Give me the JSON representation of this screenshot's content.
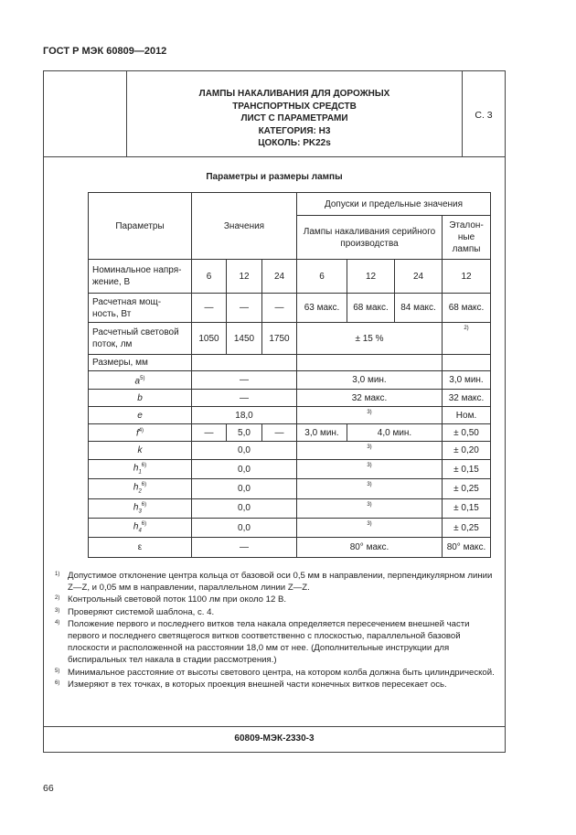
{
  "header": "ГОСТ Р МЭК 60809—2012",
  "title_lines": [
    "ЛАМПЫ НАКАЛИВАНИЯ ДЛЯ ДОРОЖНЫХ",
    "ТРАНСПОРТНЫХ СРЕДСТВ",
    "ЛИСТ С ПАРАМЕТРАМИ",
    "КАТЕГОРИЯ: H3",
    "ЦОКОЛЬ: PK22s"
  ],
  "sheet": "С. 3",
  "subtitle": "Параметры и размеры лампы",
  "table": {
    "h_params": "Параметры",
    "h_values": "Значения",
    "h_tol": "Допуски и предельные значения",
    "h_serial": "Лампы накаливания серийного производства",
    "h_ref": "Эталон- ные лампы",
    "r1": [
      "Номинальное напря- жение, В",
      "6",
      "12",
      "24",
      "6",
      "12",
      "24",
      "12"
    ],
    "r2": [
      "Расчетная мощ- ность, Вт",
      "—",
      "—",
      "—",
      "63 макс.",
      "68 макс.",
      "84 макс.",
      "68 макс."
    ],
    "r3": [
      "Расчетный световой поток, лм",
      "1050",
      "1450",
      "1750",
      "± 15 %",
      "2)"
    ],
    "r4": "Размеры, мм",
    "a": [
      "a",
      "5)",
      "—",
      "3,0 мин.",
      "3,0 мин."
    ],
    "b": [
      "b",
      "—",
      "32 макс.",
      "32 макс."
    ],
    "e": [
      "e",
      "18,0",
      "3)",
      "Ном."
    ],
    "f": [
      "f",
      "4)",
      "—",
      "5,0",
      "—",
      "3,0 мин.",
      "4,0 мин.",
      "± 0,50"
    ],
    "k": [
      "k",
      "0,0",
      "3)",
      "± 0,20"
    ],
    "h1": [
      "h",
      "1",
      "6)",
      "0,0",
      "3)",
      "± 0,15"
    ],
    "h2": [
      "h",
      "2",
      "6)",
      "0,0",
      "3)",
      "± 0,25"
    ],
    "h3": [
      "h",
      "3",
      "6)",
      "0,0",
      "3)",
      "± 0,15"
    ],
    "h4": [
      "h",
      "4",
      "6)",
      "0,0",
      "3)",
      "± 0,25"
    ],
    "eps": [
      "ε",
      "—",
      "80° макс.",
      "80° макс."
    ]
  },
  "notes": [
    {
      "n": "1)",
      "t": "Допустимое отклонение центра кольца от базовой оси 0,5 мм в направлении, перпендикулярном линии Z—Z, и 0,05 мм в направлении, параллельном линии Z—Z."
    },
    {
      "n": "2)",
      "t": "Контрольный световой поток 1100 лм при около 12 В."
    },
    {
      "n": "3)",
      "t": "Проверяют системой шаблона, с. 4."
    },
    {
      "n": "4)",
      "t": "Положение первого и последнего витков тела накала определяется пересечением внешней части первого и последнего светящегося витков соответственно с плоскостью, параллельной базовой плоскости и расположенной на расстоянии 18,0 мм от нее. (Дополнительные инструкции для биспиральных тел накала в стадии рассмотрения.)"
    },
    {
      "n": "5)",
      "t": "Минимальное расстояние от высоты светового центра, на котором колба должна быть цилиндрической."
    },
    {
      "n": "6)",
      "t": "Измеряют в тех точках, в которых проекция внешней части конечных витков пересекает ось."
    }
  ],
  "code": "60809-МЭК-2330-3",
  "page_number": "66"
}
